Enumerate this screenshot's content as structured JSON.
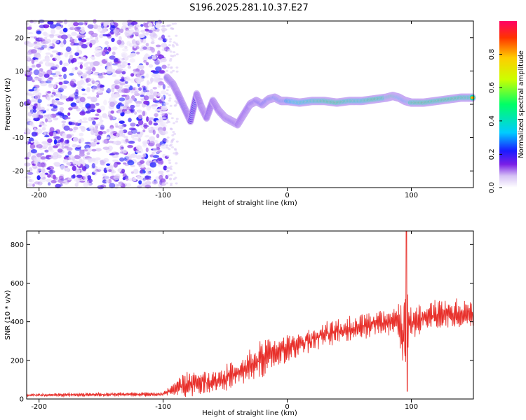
{
  "title": "S196.2025.281.10.37.E27",
  "chart_data": [
    {
      "type": "heatmap",
      "name": "spectrogram",
      "xlabel": "Height of straight line (km)",
      "ylabel": "Frequency (Hz)",
      "xlim": [
        -210,
        150
      ],
      "ylim": [
        -25,
        25
      ],
      "xticks": [
        -200,
        -100,
        0,
        100
      ],
      "xtick_labels": [
        "-200",
        "-100",
        "0",
        "100"
      ],
      "yticks": [
        -20,
        -10,
        0,
        10,
        20
      ],
      "ytick_labels": [
        "-20",
        "-10",
        "0",
        "10",
        "20"
      ],
      "colorbar": {
        "label": "Normalized spectral amplitude",
        "range": [
          0,
          1
        ],
        "ticks": [
          0.0,
          0.2,
          0.4,
          0.6,
          0.8
        ],
        "tick_labels": [
          "0.0",
          "0.2",
          "0.4",
          "0.6",
          "0.8"
        ],
        "colormap": [
          "#ffffff",
          "#d6c2f5",
          "#7a1fe6",
          "#1a1aff",
          "#00ccff",
          "#00ff66",
          "#ccff00",
          "#ffcc00",
          "#ff3300",
          "#ff0066"
        ]
      },
      "noise_region_x": [
        -210,
        -97
      ],
      "dispersion_track": [
        {
          "x": -97,
          "y": 8,
          "a": 0.4
        },
        {
          "x": -92,
          "y": 6,
          "a": 0.35
        },
        {
          "x": -88,
          "y": 3,
          "a": 0.3
        },
        {
          "x": -83,
          "y": -1,
          "a": 0.35
        },
        {
          "x": -78,
          "y": -5,
          "a": 0.3
        },
        {
          "x": -73,
          "y": 3,
          "a": 0.3
        },
        {
          "x": -69,
          "y": -1,
          "a": 0.3
        },
        {
          "x": -65,
          "y": -4,
          "a": 0.3
        },
        {
          "x": -60,
          "y": 1,
          "a": 0.3
        },
        {
          "x": -55,
          "y": -2,
          "a": 0.3
        },
        {
          "x": -50,
          "y": -4,
          "a": 0.3
        },
        {
          "x": -45,
          "y": -5,
          "a": 0.35
        },
        {
          "x": -40,
          "y": -6,
          "a": 0.3
        },
        {
          "x": -35,
          "y": -3,
          "a": 0.3
        },
        {
          "x": -30,
          "y": 0,
          "a": 0.35
        },
        {
          "x": -25,
          "y": 1,
          "a": 0.4
        },
        {
          "x": -20,
          "y": 0,
          "a": 0.45
        },
        {
          "x": -15,
          "y": 1.5,
          "a": 0.5
        },
        {
          "x": -10,
          "y": 2,
          "a": 0.55
        },
        {
          "x": -5,
          "y": 1,
          "a": 0.55
        },
        {
          "x": 0,
          "y": 1,
          "a": 0.6
        },
        {
          "x": 10,
          "y": 0.5,
          "a": 0.7
        },
        {
          "x": 20,
          "y": 1,
          "a": 0.75
        },
        {
          "x": 30,
          "y": 1,
          "a": 0.85
        },
        {
          "x": 40,
          "y": 0.5,
          "a": 0.9
        },
        {
          "x": 50,
          "y": 1,
          "a": 0.8
        },
        {
          "x": 60,
          "y": 1,
          "a": 0.75
        },
        {
          "x": 70,
          "y": 1.5,
          "a": 0.9
        },
        {
          "x": 80,
          "y": 2,
          "a": 0.8
        },
        {
          "x": 85,
          "y": 2.5,
          "a": 0.95
        },
        {
          "x": 90,
          "y": 2,
          "a": 0.7
        },
        {
          "x": 95,
          "y": 1,
          "a": 0.6
        },
        {
          "x": 100,
          "y": 0.5,
          "a": 0.85
        },
        {
          "x": 110,
          "y": 0.5,
          "a": 0.9
        },
        {
          "x": 120,
          "y": 1,
          "a": 0.85
        },
        {
          "x": 130,
          "y": 1.5,
          "a": 0.9
        },
        {
          "x": 140,
          "y": 2,
          "a": 0.85
        },
        {
          "x": 150,
          "y": 2,
          "a": 0.8
        }
      ]
    },
    {
      "type": "line",
      "name": "snr",
      "xlabel": "Height of straight line (km)",
      "ylabel": "SNR (10 * v/v)",
      "xlim": [
        -210,
        150
      ],
      "ylim": [
        0,
        870
      ],
      "xticks": [
        -200,
        -100,
        0,
        100
      ],
      "xtick_labels": [
        "-200",
        "-100",
        "0",
        "100"
      ],
      "yticks": [
        0,
        200,
        400,
        600,
        800
      ],
      "ytick_labels": [
        "0",
        "200",
        "400",
        "600",
        "800"
      ],
      "color": "#e8302b",
      "envelope": {
        "x": [
          -210,
          -100,
          -95,
          -85,
          -80,
          -70,
          -60,
          -50,
          -40,
          -30,
          -20,
          -10,
          0,
          10,
          20,
          30,
          40,
          50,
          60,
          70,
          80,
          90,
          95,
          100,
          110,
          120,
          130,
          140,
          150
        ],
        "mid": [
          20,
          25,
          40,
          70,
          80,
          85,
          90,
          110,
          130,
          170,
          210,
          240,
          260,
          290,
          310,
          330,
          350,
          360,
          380,
          390,
          400,
          400,
          320,
          390,
          420,
          430,
          440,
          440,
          440
        ],
        "amp": [
          8,
          10,
          20,
          50,
          60,
          50,
          55,
          60,
          60,
          80,
          90,
          70,
          60,
          60,
          60,
          60,
          60,
          60,
          60,
          60,
          60,
          80,
          250,
          90,
          70,
          70,
          70,
          70,
          60
        ]
      },
      "spike": {
        "x": 96,
        "min": 40,
        "max": 870
      }
    }
  ]
}
